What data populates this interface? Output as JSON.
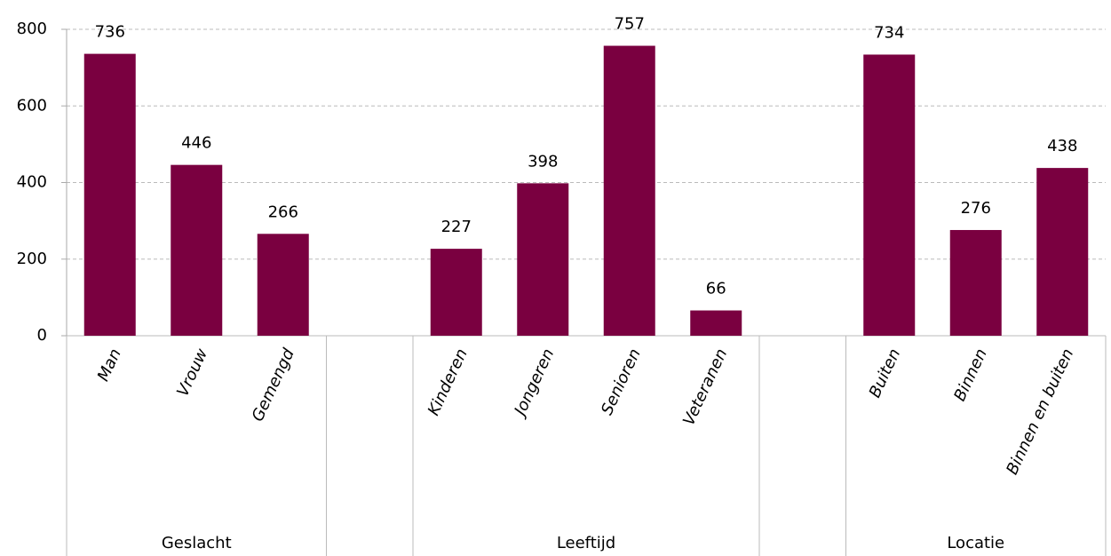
{
  "chart_data": {
    "type": "bar",
    "color": "#7a0040",
    "grid": true,
    "ylim": [
      0,
      800
    ],
    "yticks": [
      0,
      200,
      400,
      600,
      800
    ],
    "groups": [
      {
        "name": "Geslacht",
        "categories": [
          "Man",
          "Vrouw",
          "Gemengd"
        ],
        "values": [
          736,
          446,
          266
        ]
      },
      {
        "name": "Leeftijd",
        "categories": [
          "Kinderen",
          "Jongeren",
          "Senioren",
          "Veteranen"
        ],
        "values": [
          227,
          398,
          757,
          66
        ]
      },
      {
        "name": "Locatie",
        "categories": [
          "Buiten",
          "Binnen",
          "Binnen en buiten"
        ],
        "values": [
          734,
          276,
          438
        ]
      }
    ]
  }
}
